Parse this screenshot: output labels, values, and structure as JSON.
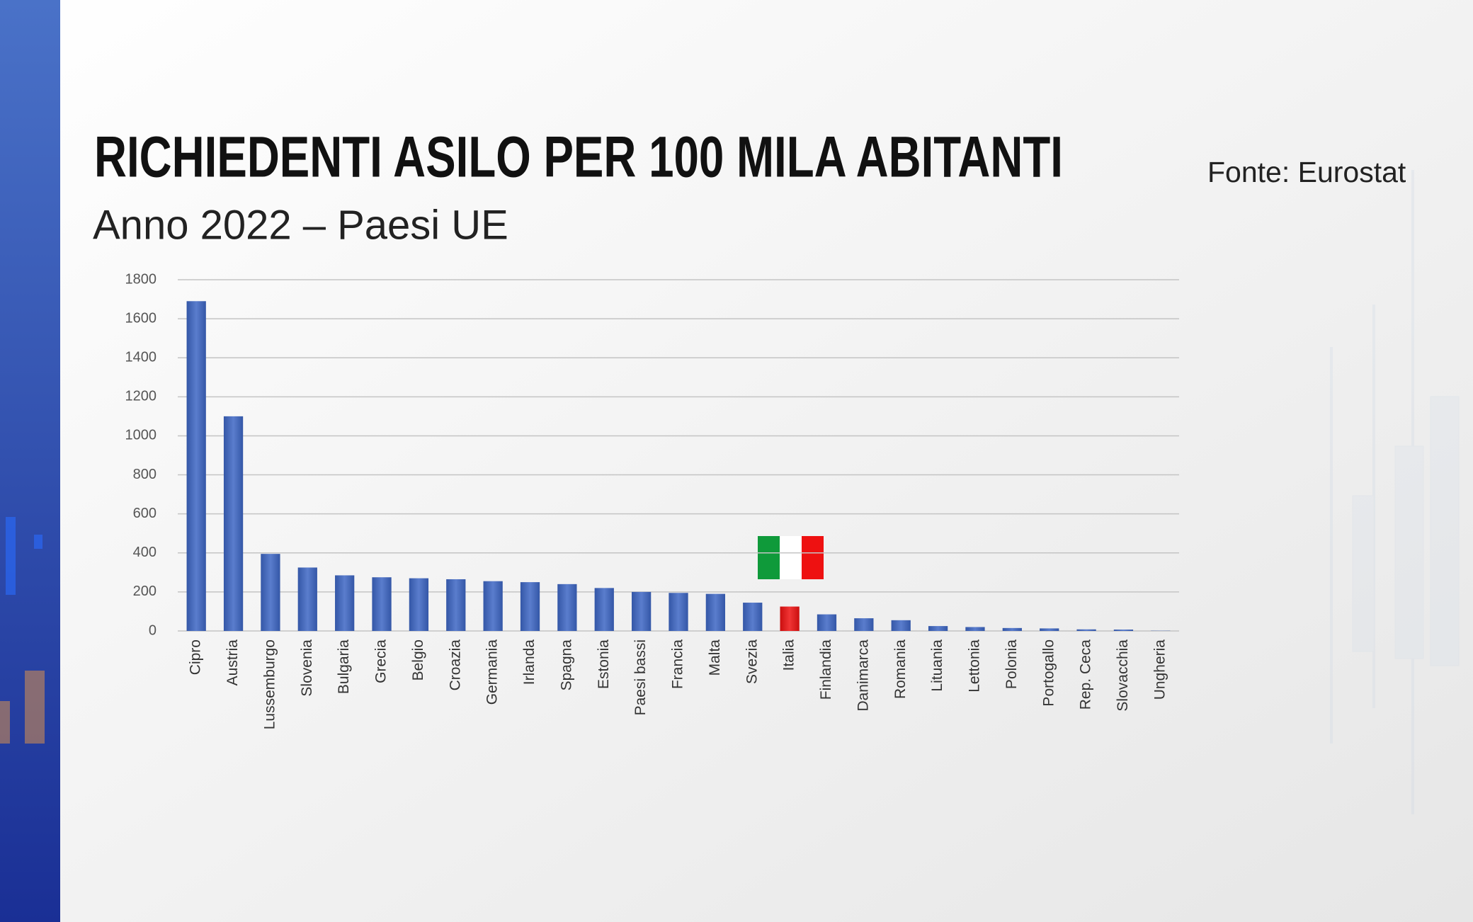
{
  "chart_data": {
    "type": "bar",
    "title": "RICHIEDENTI ASILO PER 100 MILA ABITANTI",
    "subtitle": "Anno 2022 – Paesi UE",
    "source": "Fonte: Eurostat",
    "categories": [
      "Cipro",
      "Austria",
      "Lussemburgo",
      "Slovenia",
      "Bulgaria",
      "Grecia",
      "Belgio",
      "Croazia",
      "Germania",
      "Irlanda",
      "Spagna",
      "Estonia",
      "Paesi bassi",
      "Francia",
      "Malta",
      "Svezia",
      "Italia",
      "Finlandia",
      "Danimarca",
      "Romania",
      "Lituania",
      "Lettonia",
      "Polonia",
      "Portogallo",
      "Rep. Ceca",
      "Slovacchia",
      "Ungheria"
    ],
    "values": [
      1690,
      1100,
      395,
      325,
      285,
      275,
      270,
      265,
      255,
      250,
      240,
      220,
      200,
      195,
      190,
      145,
      125,
      85,
      65,
      55,
      25,
      20,
      15,
      13,
      8,
      7,
      1
    ],
    "colors": [
      "#3d66c4",
      "#3d66c4",
      "#3d66c4",
      "#3d66c4",
      "#3d66c4",
      "#3d66c4",
      "#3d66c4",
      "#3d66c4",
      "#3d66c4",
      "#3d66c4",
      "#3d66c4",
      "#3d66c4",
      "#3d66c4",
      "#3d66c4",
      "#3d66c4",
      "#3d66c4",
      "#ee1111",
      "#3d66c4",
      "#3d66c4",
      "#3d66c4",
      "#3d66c4",
      "#3d66c4",
      "#3d66c4",
      "#3d66c4",
      "#3d66c4",
      "#3d66c4",
      "#3d66c4"
    ],
    "ylim": [
      0,
      1800
    ],
    "yticks": [
      0,
      200,
      400,
      600,
      800,
      1000,
      1200,
      1400,
      1600,
      1800
    ],
    "grid": true
  }
}
